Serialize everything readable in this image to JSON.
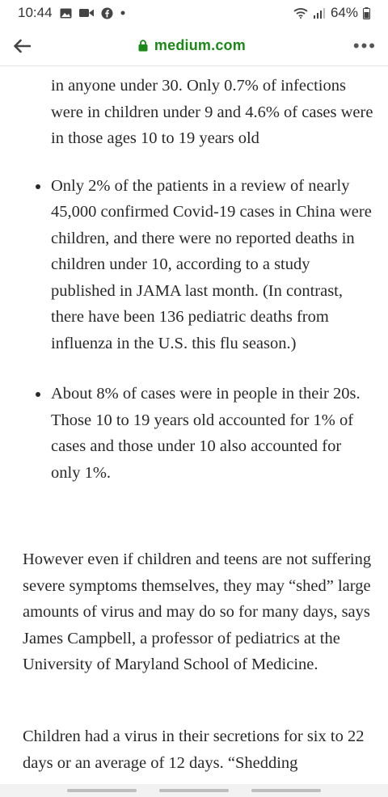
{
  "status_bar": {
    "time": "10:44",
    "battery": "64%",
    "left_icons": [
      "gallery-icon",
      "video-call-icon",
      "facebook-icon",
      "dot-icon"
    ],
    "right_icons": [
      "wifi-icon",
      "signal-icon",
      "battery-icon"
    ]
  },
  "browser": {
    "url": "medium.com",
    "menu": "•••"
  },
  "article": {
    "clipped_line": "in anyone under 30. Only 0.7% of infections",
    "bullets": [
      "in anyone under 30. Only 0.7% of infections were in children under 9 and 4.6% of cases were in those ages 10 to 19 years old",
      "Only 2% of the patients in a review of nearly 45,000 confirmed Covid-19 cases in China were children, and there were no reported deaths in children under 10, according to a study published in JAMA last month. (In contrast, there have been 136 pediatric deaths from influenza in the U.S. this flu season.)",
      "About 8% of cases were in people in their 20s. Those 10 to 19 years old accounted for 1% of cases and those under 10 also accounted for only 1%."
    ],
    "paragraphs": [
      "However even if children and teens are not suffering severe symptoms themselves, they may “shed” large amounts of virus and may do so for many days, says James Campbell, a professor of pediatrics at the University of Maryland School of Medicine.",
      "Children had a virus in their secretions for six to 22 days or an average of 12 days. “Shedding"
    ]
  }
}
